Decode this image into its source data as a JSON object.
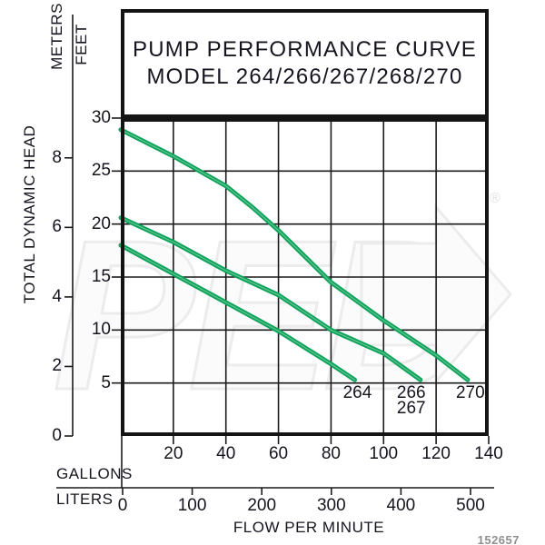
{
  "title": {
    "line1": "PUMP PERFORMANCE CURVE",
    "line2": "MODEL 264/266/267/268/270"
  },
  "y_axis": {
    "unit_primary": "METERS",
    "unit_secondary": "FEET",
    "axis_label": "TOTAL DYNAMIC HEAD"
  },
  "x_axis": {
    "unit_primary": "GALLONS",
    "unit_secondary": "LITERS",
    "axis_label": "FLOW PER MINUTE"
  },
  "watermark": {
    "brand": "PED",
    "registered_mark": "®"
  },
  "footer_code": "152657",
  "colors": {
    "curve_green": "#0ea35a",
    "grid_line": "#1b1b1b",
    "text": "#15151f",
    "watermark_stroke": "#ececec",
    "footer_gray": "#8f8f8f"
  },
  "chart_data": {
    "type": "line",
    "title": "PUMP PERFORMANCE CURVE MODEL 264/266/267/268/270",
    "xlabel": "FLOW PER MINUTE",
    "ylabel": "TOTAL DYNAMIC HEAD",
    "x_tick_units": {
      "gallons": [
        20,
        40,
        60,
        80,
        100,
        120,
        140
      ],
      "liters": [
        0,
        100,
        200,
        300,
        400,
        500
      ]
    },
    "y_tick_units": {
      "feet": [
        30,
        25,
        20,
        15,
        10,
        5
      ],
      "meters": [
        8,
        6,
        4,
        2,
        0
      ]
    },
    "xlim_gallons": [
      0,
      140
    ],
    "ylim_feet": [
      0,
      30
    ],
    "grid": true,
    "legend_position": "labels-at-curve-ends",
    "series": [
      {
        "name": "264",
        "label_lines": [
          "264"
        ],
        "points_gal_ft": [
          [
            0,
            18.0
          ],
          [
            20,
            15.3
          ],
          [
            40,
            12.6
          ],
          [
            60,
            9.9
          ],
          [
            80,
            6.8
          ],
          [
            89,
            5.3
          ]
        ]
      },
      {
        "name": "266/267",
        "label_lines": [
          "266",
          "267"
        ],
        "points_gal_ft": [
          [
            0,
            20.6
          ],
          [
            20,
            18.3
          ],
          [
            40,
            15.6
          ],
          [
            60,
            13.3
          ],
          [
            80,
            10.0
          ],
          [
            100,
            7.8
          ],
          [
            114,
            5.3
          ]
        ]
      },
      {
        "name": "270",
        "label_lines": [
          "270"
        ],
        "points_gal_ft": [
          [
            0,
            28.9
          ],
          [
            20,
            26.4
          ],
          [
            40,
            23.6
          ],
          [
            50,
            21.6
          ],
          [
            60,
            19.4
          ],
          [
            80,
            14.5
          ],
          [
            100,
            10.9
          ],
          [
            120,
            7.6
          ],
          [
            132,
            5.3
          ]
        ]
      }
    ]
  }
}
